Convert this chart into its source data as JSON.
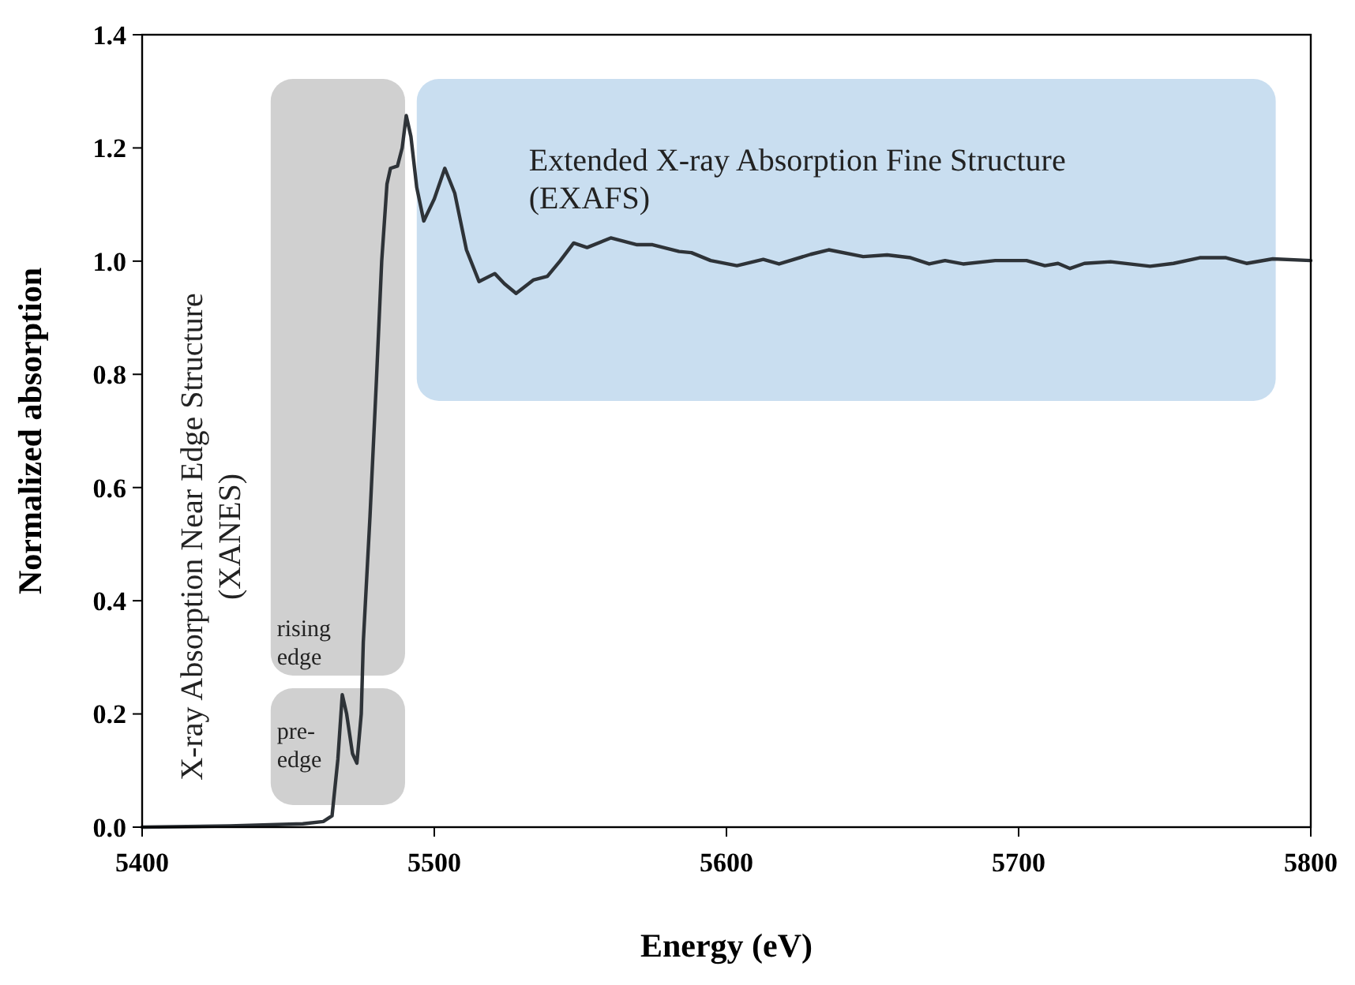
{
  "chart_data": {
    "type": "line",
    "xlabel": "Energy (eV)",
    "ylabel": "Normalized absorption",
    "xlim": [
      5400,
      5800
    ],
    "xticks": [
      5400,
      5500,
      5600,
      5700,
      5800
    ],
    "ylim": [
      0,
      1.4
    ],
    "yticks": [
      {
        "value": 0,
        "label": "0.0"
      },
      {
        "value": 0.2,
        "label": "0.2"
      },
      {
        "value": 0.4,
        "label": "0.4"
      },
      {
        "value": 0.6,
        "label": "0.6"
      },
      {
        "value": 0.8,
        "label": "0.8"
      },
      {
        "value": 1.0,
        "label": "1.0"
      },
      {
        "value": 1.2,
        "label": "1.2"
      },
      {
        "value": 1.4,
        "label": "1.4"
      }
    ],
    "grid": false,
    "marker": "none",
    "line_style": "solid",
    "series": [
      {
        "color": "#2e3338",
        "x": [
          5400,
          5430,
          5455,
          5462,
          5465,
          5467,
          5468.5,
          5470,
          5472,
          5473.5,
          5475,
          5475.7,
          5478,
          5480.2,
          5482,
          5483.8,
          5485,
          5487.4,
          5489,
          5490.4,
          5492,
          5494,
          5496.4,
          5500,
          5503.6,
          5507,
          5511,
          5515.3,
          5520.7,
          5524,
          5528,
          5534,
          5538.7,
          5543,
          5547.7,
          5552.3,
          5560.4,
          5569.4,
          5574.7,
          5583.8,
          5588,
          5594.6,
          5603.6,
          5612.6,
          5618,
          5628.8,
          5635,
          5646.8,
          5655,
          5663,
          5669.4,
          5674.8,
          5681,
          5692,
          5702.7,
          5709,
          5713.5,
          5717.6,
          5722.5,
          5731.5,
          5745,
          5753,
          5762,
          5771,
          5778,
          5787,
          5800
        ],
        "values": [
          0.0,
          0.002,
          0.006,
          0.01,
          0.02,
          0.12,
          0.234,
          0.2,
          0.13,
          0.113,
          0.2,
          0.327,
          0.55,
          0.79,
          1.0,
          1.136,
          1.164,
          1.168,
          1.2,
          1.257,
          1.22,
          1.13,
          1.071,
          1.11,
          1.164,
          1.12,
          1.02,
          0.964,
          0.978,
          0.96,
          0.943,
          0.967,
          0.973,
          1.0,
          1.032,
          1.024,
          1.041,
          1.029,
          1.029,
          1.017,
          1.015,
          1.001,
          0.992,
          1.003,
          0.995,
          1.012,
          1.02,
          1.008,
          1.011,
          1.006,
          0.995,
          1.001,
          0.995,
          1.001,
          1.001,
          0.992,
          0.996,
          0.987,
          0.996,
          0.999,
          0.991,
          0.996,
          1.006,
          1.006,
          0.996,
          1.004,
          1.001
        ]
      }
    ],
    "bands": [
      {
        "axis": "x",
        "from": 5444,
        "to": 5490,
        "label": "rising edge",
        "color": "#d0d0d0"
      },
      {
        "axis": "x",
        "from": 5444,
        "to": 5490,
        "label": "pre-edge",
        "color": "#d0d0d0"
      },
      {
        "axis": "x",
        "from": 5494,
        "to": 5788,
        "label": "Extended X-ray Absorption Fine Structure (EXAFS)",
        "color": "#c9def0"
      }
    ],
    "annotations": [
      "X-ray Absorption Near Edge Structure (XANES)"
    ]
  }
}
